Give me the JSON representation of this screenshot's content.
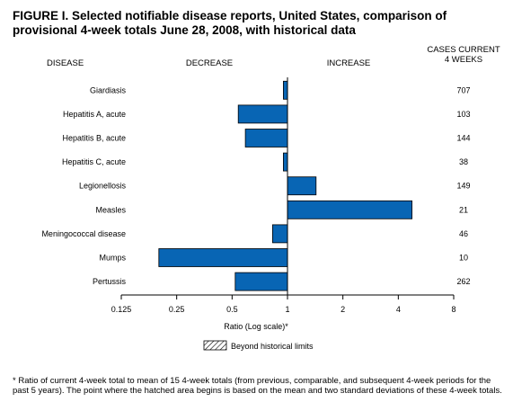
{
  "figure": {
    "title": "FIGURE I. Selected notifiable disease reports, United States, comparison of provisional 4-week totals June 28, 2008, with historical data",
    "footnote": "* Ratio of current 4-week total to mean of 15 4-week totals (from previous, comparable, and subsequent 4-week periods for the past 5 years). The point where the hatched area begins is based on the mean and two standard deviations of these 4-week totals."
  },
  "headers": {
    "disease": "DISEASE",
    "decrease": "DECREASE",
    "increase": "INCREASE",
    "cases_line1": "CASES CURRENT",
    "cases_line2": "4 WEEKS"
  },
  "legend": {
    "label": "Beyond historical limits"
  },
  "colors": {
    "bar": "#0865b4",
    "bar_border": "#000000"
  },
  "chart_data": {
    "type": "bar",
    "orientation": "horizontal",
    "xscale": "log2",
    "xlabel": "Ratio (Log scale)*",
    "xlim": [
      0.125,
      8
    ],
    "xticks": [
      0.125,
      0.25,
      0.5,
      1,
      2,
      4,
      8
    ],
    "xtick_labels": [
      "0.125",
      "0.25",
      "0.5",
      "1",
      "2",
      "4",
      "8"
    ],
    "reference": 1,
    "categories": [
      "Giardiasis",
      "Hepatitis A, acute",
      "Hepatitis B, acute",
      "Hepatitis C, acute",
      "Legionellosis",
      "Measles",
      "Meningococcal disease",
      "Mumps",
      "Pertussis"
    ],
    "values": [
      0.95,
      0.54,
      0.59,
      0.95,
      1.43,
      4.75,
      0.83,
      0.2,
      0.52
    ],
    "cases_current_4_weeks": [
      "707",
      "103",
      "144",
      "38",
      "149",
      "21",
      "46",
      "10",
      "262"
    ]
  }
}
